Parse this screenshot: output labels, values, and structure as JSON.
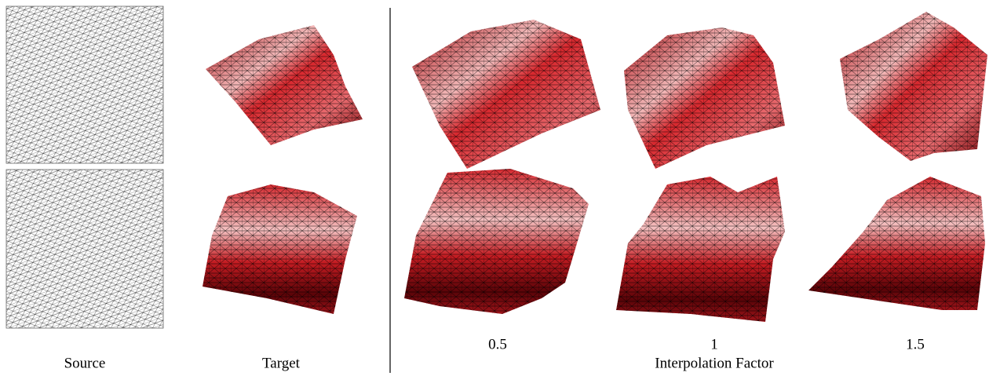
{
  "figure": {
    "columns": {
      "source": "Source",
      "target": "Target"
    },
    "factors": [
      0.5,
      1,
      1.5
    ],
    "factor_axis_label": "Interpolation Factor"
  }
}
